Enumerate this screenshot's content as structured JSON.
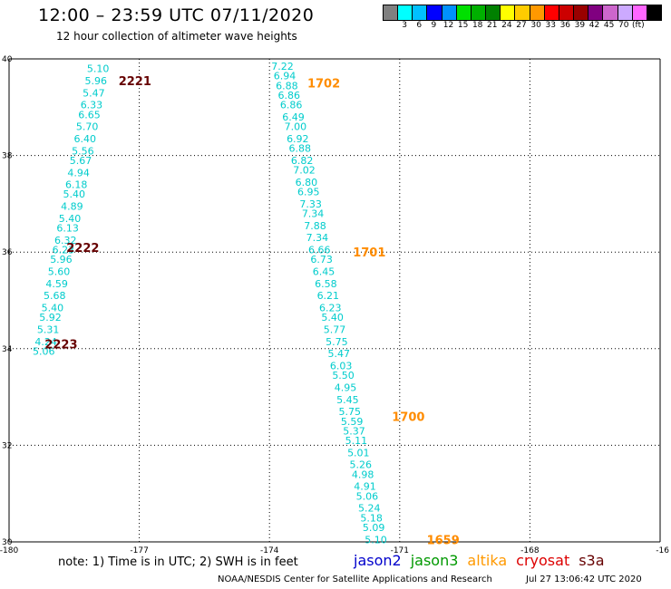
{
  "header": {
    "title": "12:00 – 23:59 UTC 07/11/2020",
    "subtitle": "12 hour collection of altimeter wave heights"
  },
  "color_scale": {
    "colors": [
      "#808080",
      "#00ffff",
      "#00c0ff",
      "#0000ff",
      "#0090ff",
      "#00e000",
      "#00b000",
      "#008000",
      "#ffff00",
      "#ffcc00",
      "#ff9900",
      "#ff0000",
      "#cc0000",
      "#990000",
      "#800080",
      "#cc66cc",
      "#ccaaff",
      "#ff66ff",
      "#000000"
    ],
    "labels": [
      "3",
      "6",
      "9",
      "12",
      "15",
      "18",
      "21",
      "24",
      "27",
      "30",
      "33",
      "36",
      "39",
      "42",
      "45",
      "70",
      "(ft)"
    ]
  },
  "map": {
    "lon_ticks": [
      "-180",
      "-177",
      "-174",
      "-171",
      "-168",
      "-16"
    ],
    "lat_ticks": [
      "40",
      "38",
      "36",
      "34",
      "32",
      "30"
    ],
    "lon_range": [
      -180,
      -165
    ],
    "lat_range": [
      30,
      40
    ]
  },
  "chart_data": {
    "type": "scatter",
    "units": "ft",
    "passes": [
      {
        "satellite": "cryosat",
        "value_color": "#00cccc",
        "time_color": "#660000",
        "time_labels": [
          {
            "text": "2221",
            "lon": -177.1,
            "lat": 39.55
          },
          {
            "text": "2222",
            "lon": -178.3,
            "lat": 36.1
          },
          {
            "text": "2223",
            "lon": -178.8,
            "lat": 34.1
          }
        ],
        "points": [
          {
            "v": "5.10",
            "lon": -177.95,
            "lat": 39.8
          },
          {
            "v": "5.96",
            "lon": -178.0,
            "lat": 39.55
          },
          {
            "v": "5.47",
            "lon": -178.05,
            "lat": 39.3
          },
          {
            "v": "6.33",
            "lon": -178.1,
            "lat": 39.05
          },
          {
            "v": "6.65",
            "lon": -178.15,
            "lat": 38.85
          },
          {
            "v": "5.70",
            "lon": -178.2,
            "lat": 38.6
          },
          {
            "v": "6.40",
            "lon": -178.25,
            "lat": 38.35
          },
          {
            "v": "5.56",
            "lon": -178.3,
            "lat": 38.1
          },
          {
            "v": "5.67",
            "lon": -178.35,
            "lat": 37.9
          },
          {
            "v": "4.94",
            "lon": -178.4,
            "lat": 37.65
          },
          {
            "v": "6.18",
            "lon": -178.45,
            "lat": 37.4
          },
          {
            "v": "5.40",
            "lon": -178.5,
            "lat": 37.2
          },
          {
            "v": "4.89",
            "lon": -178.55,
            "lat": 36.95
          },
          {
            "v": "5.40",
            "lon": -178.6,
            "lat": 36.7
          },
          {
            "v": "6.13",
            "lon": -178.65,
            "lat": 36.5
          },
          {
            "v": "6.32",
            "lon": -178.7,
            "lat": 36.25
          },
          {
            "v": "6.23",
            "lon": -178.75,
            "lat": 36.05
          },
          {
            "v": "5.96",
            "lon": -178.8,
            "lat": 35.85
          },
          {
            "v": "5.60",
            "lon": -178.85,
            "lat": 35.6
          },
          {
            "v": "4.59",
            "lon": -178.9,
            "lat": 35.35
          },
          {
            "v": "5.68",
            "lon": -178.95,
            "lat": 35.1
          },
          {
            "v": "5.40",
            "lon": -179.0,
            "lat": 34.85
          },
          {
            "v": "5.92",
            "lon": -179.05,
            "lat": 34.65
          },
          {
            "v": "5.31",
            "lon": -179.1,
            "lat": 34.4
          },
          {
            "v": "4.24",
            "lon": -179.15,
            "lat": 34.15
          },
          {
            "v": "5.06",
            "lon": -179.2,
            "lat": 33.95
          }
        ]
      },
      {
        "satellite": "altika",
        "value_color": "#00cccc",
        "time_color": "#ff8c00",
        "time_labels": [
          {
            "text": "1702",
            "lon": -172.75,
            "lat": 39.5
          },
          {
            "text": "1701",
            "lon": -171.7,
            "lat": 36.0
          },
          {
            "text": "1700",
            "lon": -170.8,
            "lat": 32.6
          },
          {
            "text": "1659",
            "lon": -170.0,
            "lat": 30.05
          }
        ],
        "points": [
          {
            "v": "7.22",
            "lon": -173.7,
            "lat": 39.85
          },
          {
            "v": "6.94",
            "lon": -173.65,
            "lat": 39.65
          },
          {
            "v": "6.88",
            "lon": -173.6,
            "lat": 39.45
          },
          {
            "v": "6.86",
            "lon": -173.55,
            "lat": 39.25
          },
          {
            "v": "6.86",
            "lon": -173.5,
            "lat": 39.05
          },
          {
            "v": "6.49",
            "lon": -173.45,
            "lat": 38.8
          },
          {
            "v": "7.00",
            "lon": -173.4,
            "lat": 38.6
          },
          {
            "v": "6.92",
            "lon": -173.35,
            "lat": 38.35
          },
          {
            "v": "6.88",
            "lon": -173.3,
            "lat": 38.15
          },
          {
            "v": "6.82",
            "lon": -173.25,
            "lat": 37.9
          },
          {
            "v": "7.02",
            "lon": -173.2,
            "lat": 37.7
          },
          {
            "v": "6.80",
            "lon": -173.15,
            "lat": 37.45
          },
          {
            "v": "6.95",
            "lon": -173.1,
            "lat": 37.25
          },
          {
            "v": "7.33",
            "lon": -173.05,
            "lat": 37.0
          },
          {
            "v": "7.34",
            "lon": -173.0,
            "lat": 36.8
          },
          {
            "v": "7.88",
            "lon": -172.95,
            "lat": 36.55
          },
          {
            "v": "7.34",
            "lon": -172.9,
            "lat": 36.3
          },
          {
            "v": "6.66",
            "lon": -172.85,
            "lat": 36.05
          },
          {
            "v": "6.73",
            "lon": -172.8,
            "lat": 35.85
          },
          {
            "v": "6.45",
            "lon": -172.75,
            "lat": 35.6
          },
          {
            "v": "6.58",
            "lon": -172.7,
            "lat": 35.35
          },
          {
            "v": "6.21",
            "lon": -172.65,
            "lat": 35.1
          },
          {
            "v": "6.23",
            "lon": -172.6,
            "lat": 34.85
          },
          {
            "v": "5.40",
            "lon": -172.55,
            "lat": 34.65
          },
          {
            "v": "5.77",
            "lon": -172.5,
            "lat": 34.4
          },
          {
            "v": "5.75",
            "lon": -172.45,
            "lat": 34.15
          },
          {
            "v": "5.47",
            "lon": -172.4,
            "lat": 33.9
          },
          {
            "v": "6.03",
            "lon": -172.35,
            "lat": 33.65
          },
          {
            "v": "5.50",
            "lon": -172.3,
            "lat": 33.45
          },
          {
            "v": "4.95",
            "lon": -172.25,
            "lat": 33.2
          },
          {
            "v": "5.45",
            "lon": -172.2,
            "lat": 32.95
          },
          {
            "v": "5.75",
            "lon": -172.15,
            "lat": 32.7
          },
          {
            "v": "5.59",
            "lon": -172.1,
            "lat": 32.5
          },
          {
            "v": "5.37",
            "lon": -172.05,
            "lat": 32.3
          },
          {
            "v": "5.11",
            "lon": -172.0,
            "lat": 32.1
          },
          {
            "v": "5.01",
            "lon": -171.95,
            "lat": 31.85
          },
          {
            "v": "5.26",
            "lon": -171.9,
            "lat": 31.6
          },
          {
            "v": "4.98",
            "lon": -171.85,
            "lat": 31.4
          },
          {
            "v": "4.91",
            "lon": -171.8,
            "lat": 31.15
          },
          {
            "v": "5.06",
            "lon": -171.75,
            "lat": 30.95
          },
          {
            "v": "5.24",
            "lon": -171.7,
            "lat": 30.7
          },
          {
            "v": "5.18",
            "lon": -171.65,
            "lat": 30.5
          },
          {
            "v": "5.09",
            "lon": -171.6,
            "lat": 30.3
          },
          {
            "v": "5.10",
            "lon": -171.55,
            "lat": 30.05
          }
        ]
      }
    ]
  },
  "footer": {
    "note": "note:  1) Time is in UTC;  2) SWH is in feet",
    "satellites": [
      {
        "name": "jason2",
        "color": "#0000cc"
      },
      {
        "name": "jason3",
        "color": "#009900"
      },
      {
        "name": "altika",
        "color": "#ff9900"
      },
      {
        "name": "cryosat",
        "color": "#dd0000"
      },
      {
        "name": "s3a",
        "color": "#660000"
      }
    ],
    "credit": "NOAA/NESDIS Center for Satellite Applications and Research",
    "timestamp": "Jul 27 13:06:42 UTC 2020"
  }
}
